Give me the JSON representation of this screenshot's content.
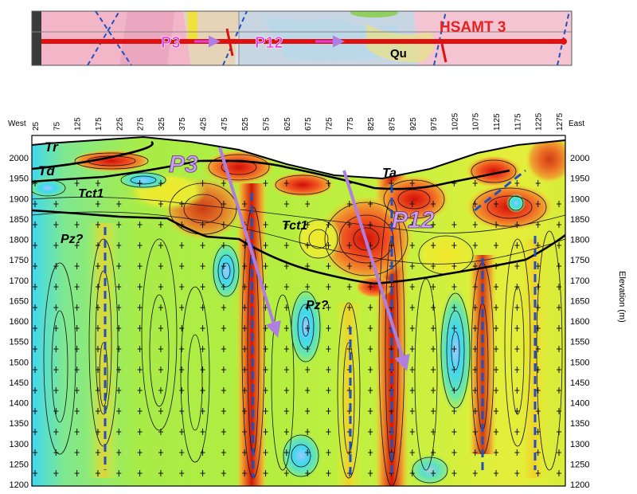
{
  "strip": {
    "labels": [
      {
        "id": "p3",
        "text": "P3"
      },
      {
        "id": "p12",
        "text": "P12"
      },
      {
        "id": "qu",
        "text": "Qu"
      },
      {
        "id": "line",
        "text": "HSAMT 3"
      }
    ]
  },
  "section": {
    "west_label": "West",
    "east_label": "East",
    "station_labels": [
      "25",
      "75",
      "125",
      "175",
      "225",
      "275",
      "325",
      "375",
      "425",
      "475",
      "525",
      "575",
      "625",
      "675",
      "725",
      "775",
      "825",
      "875",
      "925",
      "975",
      "1025",
      "1075",
      "1125",
      "1175",
      "1225",
      "1275"
    ],
    "elevation_labels": [
      "2000",
      "1950",
      "1900",
      "1850",
      "1800",
      "1750",
      "1700",
      "1650",
      "1600",
      "1550",
      "1500",
      "1450",
      "1400",
      "1350",
      "1300",
      "1250",
      "1200"
    ],
    "elevation_axis_title": "Elevation (m)",
    "units": [
      {
        "id": "tr",
        "text": "Tr"
      },
      {
        "id": "td",
        "text": "Td"
      },
      {
        "id": "tct1-left",
        "text": "Tct1"
      },
      {
        "id": "pz-left",
        "text": "Pz?"
      },
      {
        "id": "ta",
        "text": "Ta"
      },
      {
        "id": "tct1-mid",
        "text": "Tct1"
      },
      {
        "id": "pz-mid",
        "text": "Pz?"
      }
    ],
    "profiles": [
      {
        "id": "p3",
        "text": "P3"
      },
      {
        "id": "p12",
        "text": "P12"
      }
    ],
    "colors": {
      "low": "#3fd3f0",
      "mid": "#9ee850",
      "high": "#f0e830",
      "warm": "#f08a20",
      "hot": "#e02010",
      "profile_arrow": "#b07ee0",
      "contact": "#000000",
      "fault": "#2050c0",
      "map_line": "#e01010"
    }
  }
}
